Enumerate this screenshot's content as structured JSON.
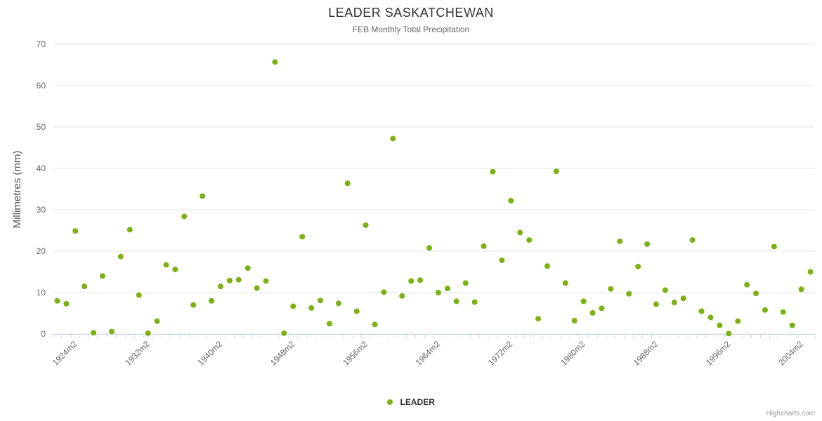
{
  "chart_data": {
    "type": "scatter",
    "title": "LEADER SASKATCHEWAN",
    "subtitle": "FEB Monthly Total Precipitation",
    "xlabel": "",
    "ylabel": "Millimetres (mm)",
    "ylim": [
      0,
      70
    ],
    "y_ticks": [
      0,
      10,
      20,
      30,
      40,
      50,
      60,
      70
    ],
    "grid": true,
    "x_tick_labels": [
      "1924m2",
      "1932m2",
      "1940m2",
      "1948m2",
      "1956m2",
      "1964m2",
      "1972m2",
      "1980m2",
      "1988m2",
      "1996m2",
      "2004m2"
    ],
    "legend": {
      "position": "bottom",
      "items": [
        {
          "label": "LEADER",
          "color": "#7cb112"
        }
      ]
    },
    "series": [
      {
        "name": "LEADER",
        "color": "#7cb112",
        "x": [
          1922,
          1923,
          1924,
          1925,
          1926,
          1927,
          1928,
          1929,
          1930,
          1931,
          1932,
          1933,
          1934,
          1935,
          1936,
          1937,
          1938,
          1939,
          1940,
          1941,
          1942,
          1943,
          1944,
          1945,
          1946,
          1947,
          1948,
          1949,
          1950,
          1951,
          1952,
          1953,
          1954,
          1955,
          1956,
          1957,
          1958,
          1959,
          1960,
          1961,
          1962,
          1963,
          1964,
          1965,
          1966,
          1967,
          1968,
          1969,
          1970,
          1971,
          1972,
          1973,
          1974,
          1975,
          1976,
          1977,
          1978,
          1979,
          1980,
          1981,
          1982,
          1983,
          1984,
          1985,
          1986,
          1987,
          1988,
          1989,
          1990,
          1991,
          1992,
          1993,
          1994,
          1995,
          1996,
          1997,
          1998,
          1999,
          2000,
          2001,
          2002,
          2003,
          2004,
          2005
        ],
        "values": [
          8.0,
          7.3,
          24.9,
          11.5,
          0.3,
          14.0,
          0.6,
          18.7,
          25.2,
          9.4,
          0.2,
          3.1,
          16.7,
          15.6,
          28.4,
          7.0,
          33.3,
          8.0,
          11.5,
          12.9,
          13.1,
          15.9,
          11.1,
          12.8,
          65.7,
          0.2,
          6.7,
          23.5,
          6.3,
          8.1,
          2.5,
          7.4,
          36.4,
          5.5,
          26.3,
          2.3,
          10.1,
          47.2,
          9.2,
          12.8,
          13.0,
          20.8,
          10.0,
          11.0,
          7.9,
          12.3,
          7.7,
          21.2,
          39.2,
          17.8,
          32.2,
          24.5,
          22.7,
          3.7,
          16.4,
          39.3,
          12.3,
          3.2,
          7.9,
          5.1,
          6.2,
          10.9,
          22.4,
          9.7,
          16.3,
          21.7,
          7.2,
          10.6,
          7.6,
          8.6,
          22.7,
          5.5,
          4.0,
          2.1,
          0.1,
          3.1,
          11.9,
          9.8,
          5.8,
          21.1,
          5.3,
          2.1,
          10.8,
          15.0
        ]
      }
    ],
    "colors": {
      "gridline": "#e6e6e6",
      "axis": "#ccd6eb",
      "tick_label": "#666666",
      "title": "#333333"
    },
    "credits": "Highcharts.com"
  }
}
